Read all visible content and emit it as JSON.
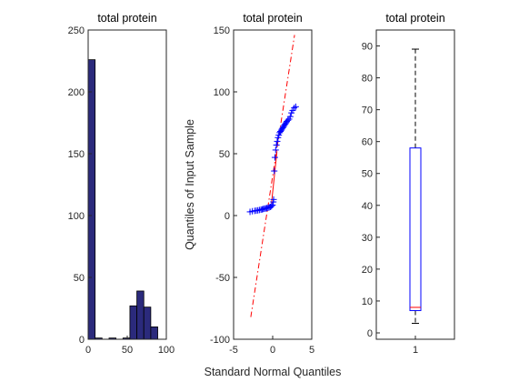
{
  "figure": {
    "shared_xlabel": "Standard Normal Quantiles"
  },
  "chart_data": [
    {
      "type": "bar",
      "subtype": "histogram",
      "title": "total protein",
      "xlabel": "",
      "ylabel": "",
      "xlim": [
        0,
        100
      ],
      "ylim": [
        0,
        250
      ],
      "xticks": [
        0,
        50,
        100
      ],
      "yticks": [
        0,
        50,
        100,
        150,
        200,
        250
      ],
      "bin_edges": [
        0,
        8.9,
        17.8,
        26.7,
        35.6,
        44.5,
        53.4,
        62.3,
        71.2,
        80.1,
        89
      ],
      "values": [
        226,
        1,
        0,
        1,
        0,
        1,
        27,
        39,
        26,
        10
      ],
      "bar_color": "#2b2a7c",
      "edge_color": "#000000"
    },
    {
      "type": "scatter",
      "subtype": "qqplot",
      "title": "total protein",
      "xlabel": "",
      "ylabel": "Quantiles of Input Sample",
      "xlim": [
        -5,
        5
      ],
      "ylim": [
        -100,
        150
      ],
      "xticks": [
        -5,
        0,
        5
      ],
      "yticks": [
        -100,
        -50,
        0,
        50,
        100,
        150
      ],
      "marker": "+",
      "marker_color": "#0000ff",
      "line_color": "#ff0000",
      "points": [
        [
          -2.9,
          3
        ],
        [
          -2.6,
          3.5
        ],
        [
          -2.3,
          3.8
        ],
        [
          -2.1,
          4
        ],
        [
          -1.9,
          4.2
        ],
        [
          -1.7,
          4.5
        ],
        [
          -1.5,
          4.8
        ],
        [
          -1.35,
          5
        ],
        [
          -1.2,
          5.3
        ],
        [
          -1.05,
          5.6
        ],
        [
          -0.9,
          5.8
        ],
        [
          -0.75,
          6
        ],
        [
          -0.6,
          6.3
        ],
        [
          -0.45,
          6.6
        ],
        [
          -0.3,
          7
        ],
        [
          -0.15,
          7.5
        ],
        [
          -0.02,
          8.5
        ],
        [
          0.08,
          11
        ],
        [
          0.12,
          13
        ],
        [
          0.2,
          36
        ],
        [
          0.28,
          47
        ],
        [
          0.38,
          53
        ],
        [
          0.48,
          57
        ],
        [
          0.58,
          60
        ],
        [
          0.68,
          63
        ],
        [
          0.78,
          65
        ],
        [
          0.9,
          67
        ],
        [
          1.0,
          68
        ],
        [
          1.1,
          69
        ],
        [
          1.2,
          70
        ],
        [
          1.3,
          71
        ],
        [
          1.4,
          72
        ],
        [
          1.5,
          73
        ],
        [
          1.6,
          74
        ],
        [
          1.7,
          75
        ],
        [
          1.8,
          76
        ],
        [
          1.95,
          77
        ],
        [
          2.1,
          78
        ],
        [
          2.25,
          80
        ],
        [
          2.4,
          83
        ],
        [
          2.55,
          85
        ],
        [
          2.75,
          87
        ],
        [
          2.95,
          88
        ]
      ],
      "reference_line": {
        "solid": [
          [
            -0.15,
            10
          ],
          [
            0.55,
            52
          ]
        ],
        "dashed": [
          [
            -2.8,
            -82
          ],
          [
            2.8,
            146
          ]
        ]
      }
    },
    {
      "type": "boxplot",
      "title": "total protein",
      "xlabel": "",
      "ylabel": "",
      "categories": [
        "1"
      ],
      "ylim": [
        -2,
        95
      ],
      "yticks": [
        0,
        10,
        20,
        30,
        40,
        50,
        60,
        70,
        80,
        90
      ],
      "box": {
        "q1": 7,
        "median": 8,
        "q3": 58,
        "whisker_low": 3,
        "whisker_high": 89
      },
      "box_color": "#0000ff",
      "median_color": "#ff0000",
      "whisker_color": "#000000"
    }
  ]
}
